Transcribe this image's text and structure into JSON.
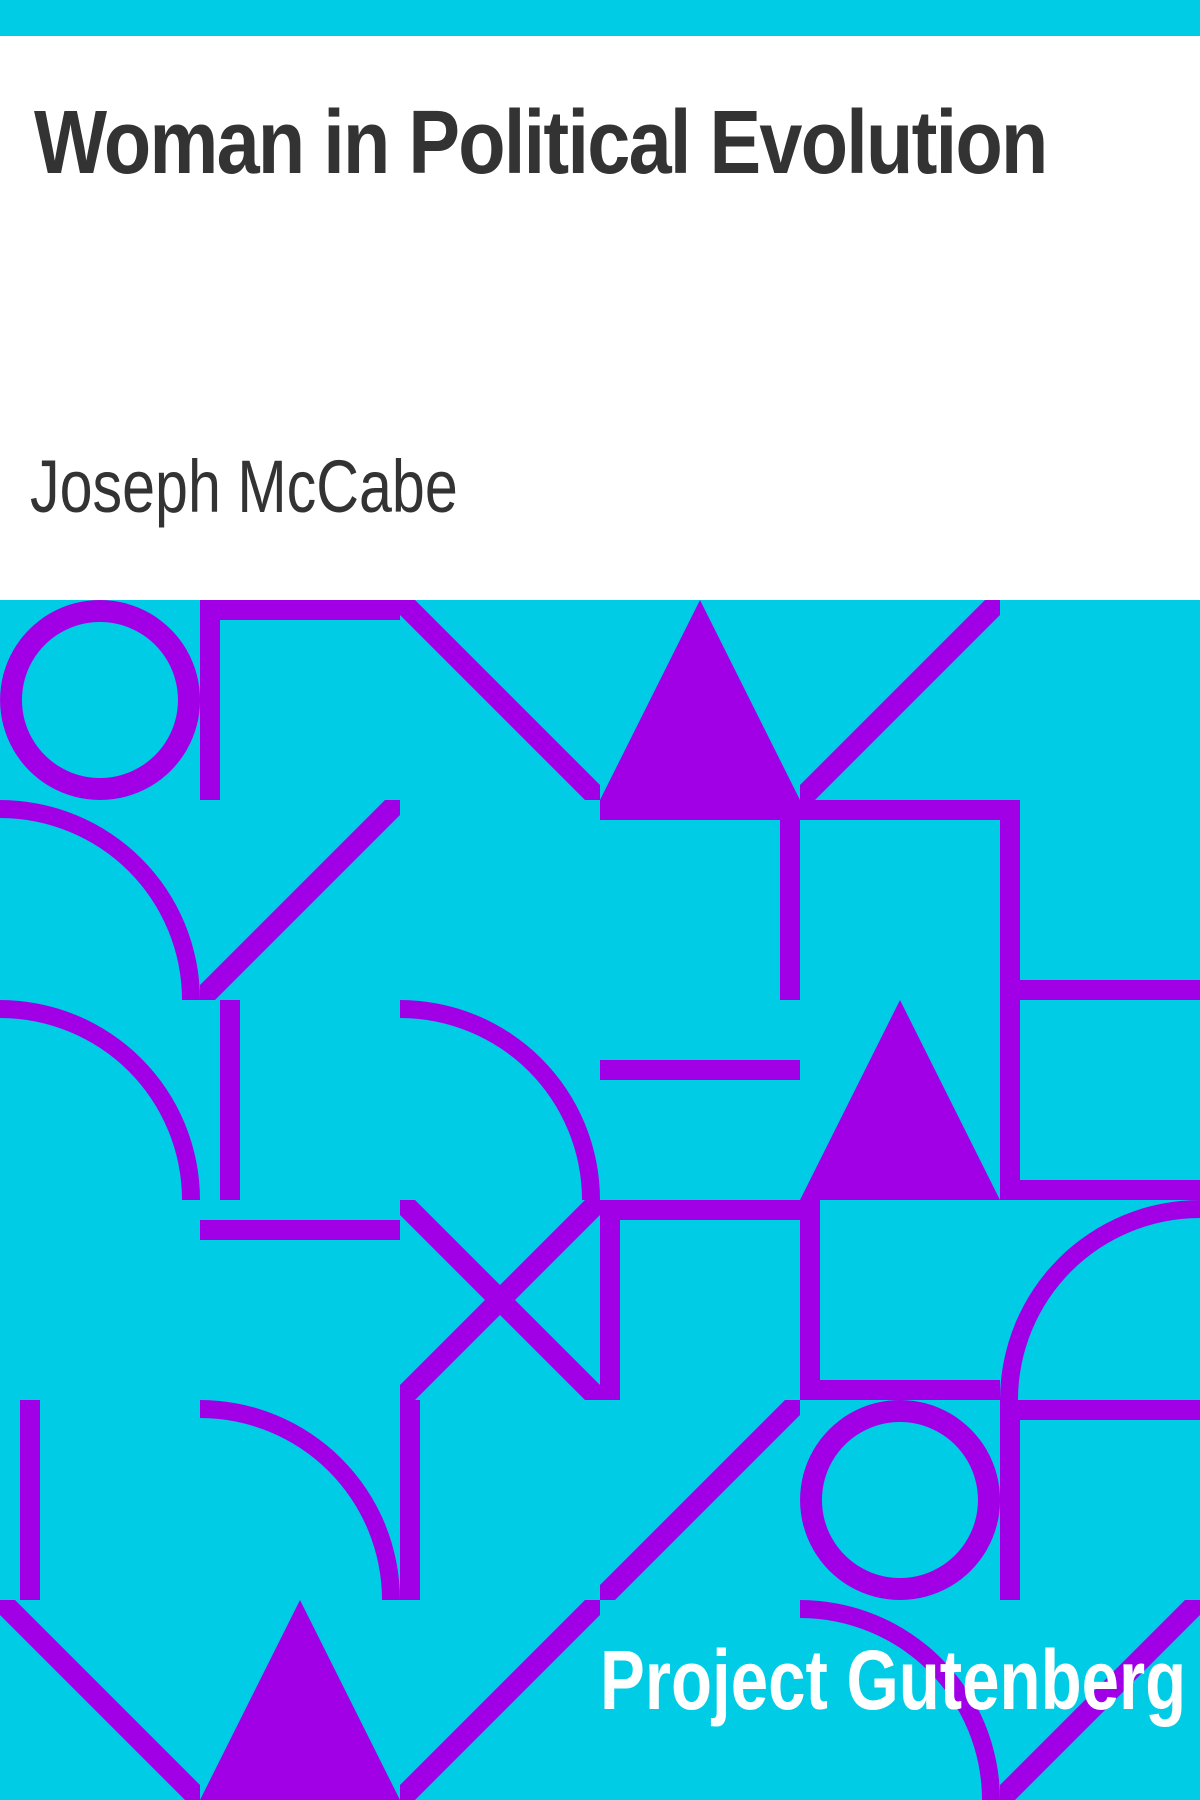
{
  "cover": {
    "title": "Woman in Political Evolution",
    "author": "Joseph McCabe",
    "publisher": "Project Gutenberg"
  },
  "colors": {
    "accent": "#00cde5",
    "pattern": "#a100e6",
    "text": "#333333",
    "background": "#ffffff"
  }
}
